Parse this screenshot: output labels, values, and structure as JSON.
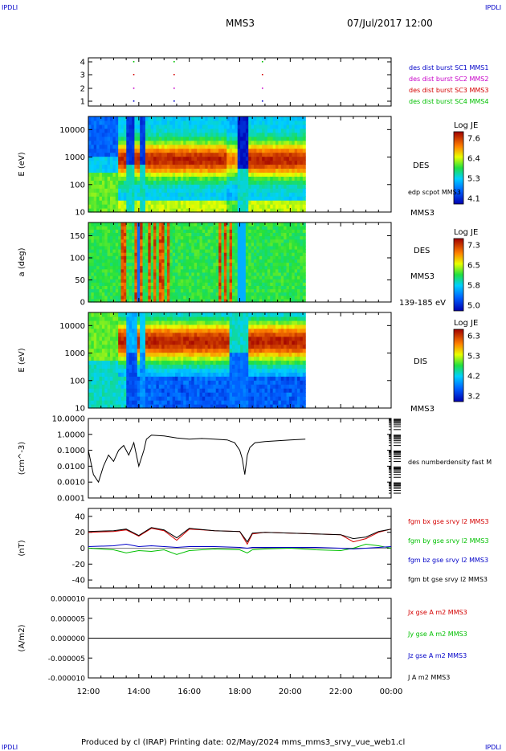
{
  "header": {
    "corner_tl": "IPDLI",
    "corner_tr": "IPDLI",
    "spacecraft": "MMS3",
    "datetime": "07/Jul/2017 12:00",
    "corner_bl": "IPDLI",
    "corner_br": "IPDLI"
  },
  "footer": {
    "text": "Produced by cl (IRAP)   Printing date: 02/May/2024   mms_mms3_srvy_vue_web1.cl"
  },
  "time_axis": {
    "ticks": [
      "12:00",
      "14:00",
      "16:00",
      "18:00",
      "20:00",
      "22:00",
      "00:00"
    ],
    "range_hours": [
      12,
      24
    ],
    "data_end_hour": 20.6
  },
  "colors": {
    "red": "#d40000",
    "green": "#00c000",
    "blue": "#0000c8",
    "magenta": "#c800c8",
    "black": "#000000"
  },
  "chart_data": [
    {
      "id": "burst",
      "type": "scatter",
      "y_ticks": [
        "4",
        "3",
        "2",
        "1"
      ],
      "legend": [
        {
          "label": "des dist burst SC1 MMS1",
          "color": "#0000c8"
        },
        {
          "label": "des dist burst SC2 MMS2",
          "color": "#c800c8"
        },
        {
          "label": "des dist burst SC3 MMS3",
          "color": "#d40000"
        },
        {
          "label": "des dist burst SC4 MMS4",
          "color": "#00c000"
        }
      ],
      "burst_times_hours": [
        13.8,
        15.4,
        18.9
      ]
    },
    {
      "id": "des-energy",
      "type": "heatmap",
      "ylabel": "E (eV)",
      "y_ticks": [
        "10000",
        "1000",
        "100",
        "10"
      ],
      "side_labels": [
        "DES",
        "edp scpot MMS3",
        "MMS3"
      ],
      "colorbar": {
        "title": "Log JE",
        "ticks": [
          "7.6",
          "6.4",
          "5.3",
          "4.1"
        ]
      }
    },
    {
      "id": "des-pitch",
      "type": "heatmap",
      "ylabel": "a (deg)",
      "y_ticks": [
        "150",
        "100",
        "50",
        "0"
      ],
      "side_labels": [
        "DES",
        "MMS3",
        "139-185 eV"
      ],
      "colorbar": {
        "title": "Log JE",
        "ticks": [
          "7.3",
          "6.5",
          "5.8",
          "5.0"
        ]
      }
    },
    {
      "id": "dis-energy",
      "type": "heatmap",
      "ylabel": "E (eV)",
      "y_ticks": [
        "10000",
        "1000",
        "100",
        "10"
      ],
      "side_labels": [
        "DIS",
        "MMS3"
      ],
      "colorbar": {
        "title": "Log JE",
        "ticks": [
          "6.3",
          "5.3",
          "4.2",
          "3.2"
        ]
      }
    },
    {
      "id": "density",
      "type": "line",
      "ylabel": "(cm^-3)",
      "scale": "log",
      "ylim": [
        0.0001,
        10
      ],
      "y_ticks": [
        "10.0000",
        "1.0000",
        "0.1000",
        "0.0100",
        "0.0010",
        "0.0001"
      ],
      "series": [
        {
          "name": "des numberdensity fast M",
          "color": "#000000",
          "x": [
            12.0,
            12.2,
            12.4,
            12.6,
            12.8,
            13.0,
            13.2,
            13.4,
            13.6,
            13.8,
            14.0,
            14.2,
            14.3,
            14.5,
            15.0,
            15.5,
            16.0,
            16.5,
            17.0,
            17.5,
            17.8,
            18.0,
            18.1,
            18.2,
            18.3,
            18.4,
            18.6,
            19.0,
            19.5,
            20.0,
            20.6
          ],
          "y": [
            0.1,
            0.003,
            0.001,
            0.01,
            0.05,
            0.02,
            0.1,
            0.2,
            0.05,
            0.3,
            0.01,
            0.1,
            0.5,
            0.9,
            0.8,
            0.6,
            0.5,
            0.55,
            0.5,
            0.45,
            0.3,
            0.1,
            0.03,
            0.003,
            0.05,
            0.15,
            0.3,
            0.35,
            0.4,
            0.45,
            0.5
          ]
        }
      ]
    },
    {
      "id": "magnetic-field",
      "type": "line",
      "ylabel": "(nT)",
      "ylim": [
        -50,
        50
      ],
      "y_ticks": [
        "40",
        "20",
        "0",
        "-20",
        "-40"
      ],
      "series": [
        {
          "name": "fgm bx gse srvy l2 MMS3",
          "color": "#d40000",
          "x": [
            12,
            13,
            13.5,
            14,
            14.5,
            15,
            15.5,
            16,
            17,
            18,
            18.3,
            18.5,
            19,
            20,
            21,
            22,
            22.5,
            23,
            23.5,
            24
          ],
          "y": [
            20,
            21,
            23,
            15,
            25,
            22,
            10,
            24,
            22,
            21,
            5,
            18,
            20,
            19,
            18,
            17,
            8,
            12,
            20,
            24
          ]
        },
        {
          "name": "fgm by gse srvy l2 MMS3",
          "color": "#00c000",
          "x": [
            12,
            13,
            13.5,
            14,
            14.5,
            15,
            15.5,
            16,
            17,
            18,
            18.3,
            18.5,
            19,
            20,
            21,
            22,
            22.5,
            23,
            23.5,
            24
          ],
          "y": [
            0,
            -2,
            -6,
            -3,
            -4,
            -2,
            -8,
            -3,
            -1,
            -2,
            -6,
            -2,
            -1,
            0,
            -2,
            -3,
            0,
            5,
            3,
            0
          ]
        },
        {
          "name": "fgm bz gse srvy l2 MMS3",
          "color": "#0000c8",
          "x": [
            12,
            13,
            13.5,
            14,
            14.5,
            15,
            15.5,
            16,
            17,
            18,
            18.3,
            18.5,
            19,
            20,
            21,
            22,
            22.5,
            23,
            23.5,
            24
          ],
          "y": [
            2,
            3,
            5,
            2,
            3,
            2,
            1,
            2,
            2,
            1,
            0,
            1,
            1,
            1,
            1,
            0,
            -1,
            0,
            1,
            2
          ]
        },
        {
          "name": "fgm bt gse srvy l2 MMS3",
          "color": "#000000",
          "x": [
            12,
            13,
            13.5,
            14,
            14.5,
            15,
            15.5,
            16,
            17,
            18,
            18.3,
            18.5,
            19,
            20,
            21,
            22,
            22.5,
            23,
            23.5,
            24
          ],
          "y": [
            21,
            22,
            24,
            16,
            26,
            23,
            13,
            25,
            22,
            21,
            8,
            19,
            20,
            19,
            18,
            17,
            12,
            14,
            21,
            24
          ]
        }
      ]
    },
    {
      "id": "current-density",
      "type": "line",
      "ylabel": "(A/m2)",
      "ylim": [
        -1e-05,
        1e-05
      ],
      "y_ticks": [
        "0.000010",
        "0.000005",
        "0.000000",
        "-0.000005",
        "-0.000010"
      ],
      "series": [
        {
          "name": "Jx gse A m2 MMS3",
          "color": "#d40000",
          "x": [
            12,
            24
          ],
          "y": [
            0,
            0
          ]
        },
        {
          "name": "Jy gse A m2 MMS3",
          "color": "#00c000",
          "x": [
            12,
            24
          ],
          "y": [
            0,
            0
          ]
        },
        {
          "name": "Jz gse A m2 MMS3",
          "color": "#0000c8",
          "x": [
            12,
            24
          ],
          "y": [
            0,
            0
          ]
        },
        {
          "name": "J A m2 MMS3",
          "color": "#000000",
          "x": [
            12,
            24
          ],
          "y": [
            0,
            0
          ]
        }
      ]
    }
  ]
}
